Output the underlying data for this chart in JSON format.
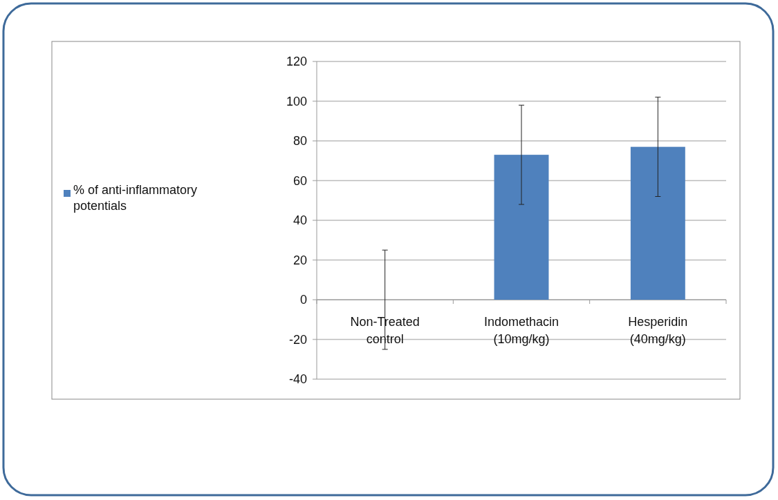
{
  "chart_data": {
    "type": "bar",
    "categories": [
      "Non-Treated control",
      "Indomethacin (10mg/kg)",
      "Hesperidin (40mg/kg)"
    ],
    "series": [
      {
        "name": "% of anti-inflammatory potentials",
        "color": "#4f81bd",
        "values": [
          0,
          73,
          77
        ],
        "errors": [
          25,
          25,
          25
        ]
      }
    ],
    "ylim": [
      -40,
      120
    ],
    "yticks": [
      -40,
      -20,
      0,
      20,
      40,
      60,
      80,
      100,
      120
    ],
    "grid": "y",
    "legend": "left"
  }
}
